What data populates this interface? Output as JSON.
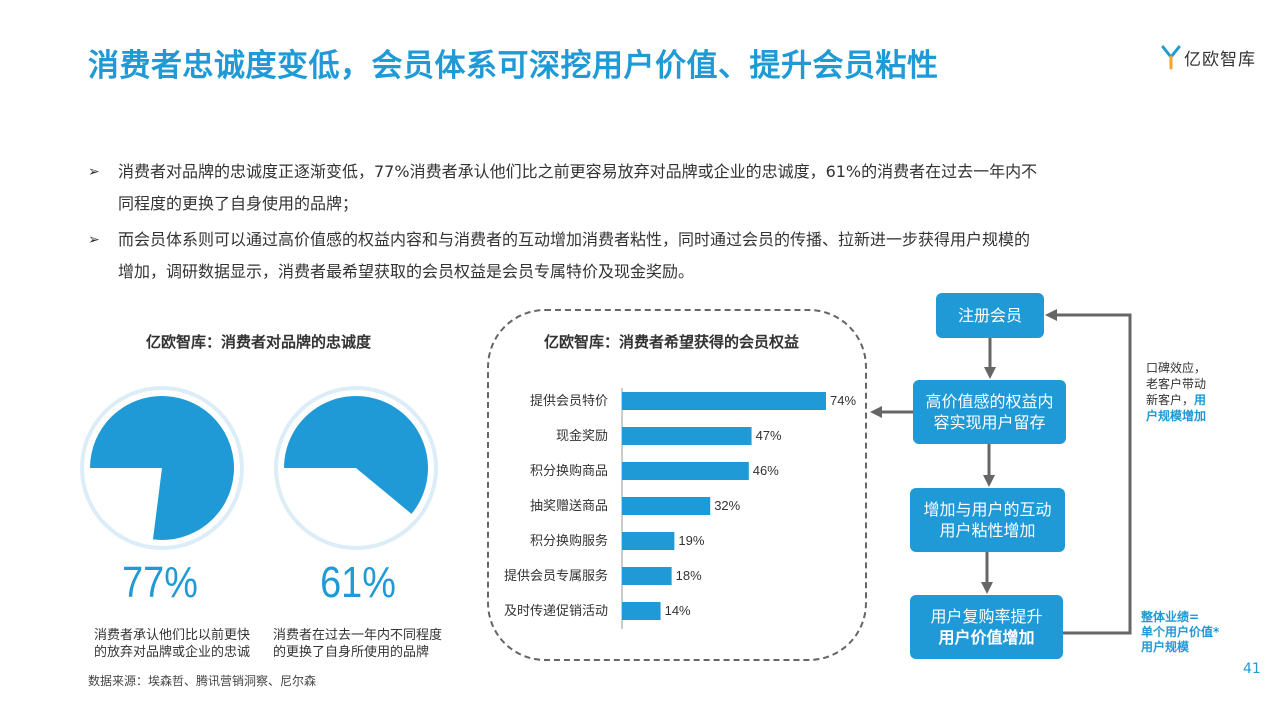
{
  "header": {
    "title": "消费者忠诚度变低，会员体系可深挖用户价值、提升会员粘性",
    "logo_text": "亿欧智库"
  },
  "bullets": [
    {
      "line1": "消费者对品牌的忠诚度正逐渐变低，77%消费者承认他们比之前更容易放弃对品牌或企业的忠诚度，61%的消费者在过去一年内不",
      "line2": "同程度的更换了自身使用的品牌；"
    },
    {
      "line1": "而会员体系则可以通过高价值感的权益内容和与消费者的互动增加消费者粘性，同时通过会员的传播、拉新进一步获得用户规模的",
      "line2": "增加，调研数据显示，消费者最希望获取的会员权益是会员专属特价及现金奖励。"
    }
  ],
  "bullet_marker": "➢",
  "loyalty": {
    "title": "亿欧智库：消费者对品牌的忠诚度",
    "pies": [
      {
        "value": 77,
        "label": "77%",
        "caption_l1": "消费者承认他们比以前更快",
        "caption_l2": "的放弃对品牌或企业的忠诚"
      },
      {
        "value": 61,
        "label": "61%",
        "caption_l1": "消费者在过去一年内不同程度",
        "caption_l2": "的更换了自身所使用的品牌"
      }
    ],
    "colors": {
      "fill": "#1f9ad6",
      "ring": "#dcedf7"
    }
  },
  "chart_data": {
    "type": "bar",
    "orientation": "horizontal",
    "title": "亿欧智库：消费者希望获得的会员权益",
    "categories": [
      "提供会员特价",
      "现金奖励",
      "积分换购商品",
      "抽奖赠送商品",
      "积分换购服务",
      "提供会员专属服务",
      "及时传递促销活动"
    ],
    "values": [
      74,
      47,
      46,
      32,
      19,
      18,
      14
    ],
    "value_labels": [
      "74%",
      "47%",
      "46%",
      "32%",
      "19%",
      "18%",
      "14%"
    ],
    "xlim": [
      0,
      74
    ],
    "grid": false,
    "bar_color": "#1f9ad6"
  },
  "flow": {
    "step1": "注册会员",
    "step2_l1": "高价值感的权益内",
    "step2_l2": "容实现用户留存",
    "step3_l1": "增加与用户的互动",
    "step3_l2": "用户粘性增加",
    "step4_l1": "用户复购率提升",
    "step4_l2": "用户价值增加",
    "note_top_l1": "口碑效应，",
    "note_top_l2": "老客户带动",
    "note_top_l3": "新客户，",
    "note_top_hl1": "用",
    "note_top_hl2": "户规模增加",
    "note_bottom_l1": "整体业绩=",
    "note_bottom_l2": "单个用户价值*",
    "note_bottom_l3": "用户规模"
  },
  "footer": {
    "source": "数据来源：埃森哲、腾讯营销洞察、尼尔森",
    "page": "41"
  }
}
